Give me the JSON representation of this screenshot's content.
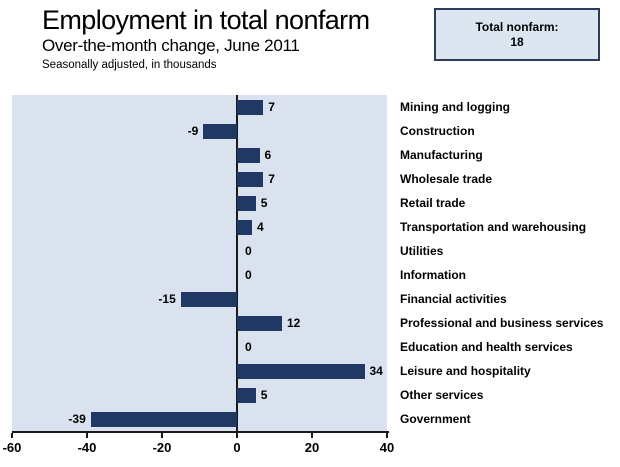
{
  "header": {
    "title": "Employment in total nonfarm",
    "subtitle": "Over-the-month change, June 2011",
    "note": "Seasonally adjusted, in thousands"
  },
  "total_box": {
    "label": "Total nonfarm:",
    "value": "18"
  },
  "chart_data": {
    "type": "bar",
    "orientation": "horizontal",
    "title": "Employment in total nonfarm",
    "subtitle": "Over-the-month change, June 2011",
    "units_note": "Seasonally adjusted, in thousands",
    "categories": [
      "Mining and logging",
      "Construction",
      "Manufacturing",
      "Wholesale trade",
      "Retail trade",
      "Transportation and warehousing",
      "Utilities",
      "Information",
      "Financial activities",
      "Professional and business services",
      "Education and health services",
      "Leisure and hospitality",
      "Other services",
      "Government"
    ],
    "values": [
      7,
      -9,
      6,
      7,
      5,
      4,
      0,
      0,
      -15,
      12,
      0,
      34,
      5,
      -39
    ],
    "xlim": [
      -60,
      40
    ],
    "xticks": [
      -60,
      -40,
      -20,
      0,
      20,
      40
    ],
    "grid": false,
    "value_labels": true,
    "legend": "none"
  },
  "colors": {
    "bar": "#1f3864",
    "plot_bg": "#d9e2ee",
    "axis": "#1a1a1a",
    "box_bg": "#dce6f1",
    "box_border": "#2b3d5b",
    "text": "#000000"
  }
}
